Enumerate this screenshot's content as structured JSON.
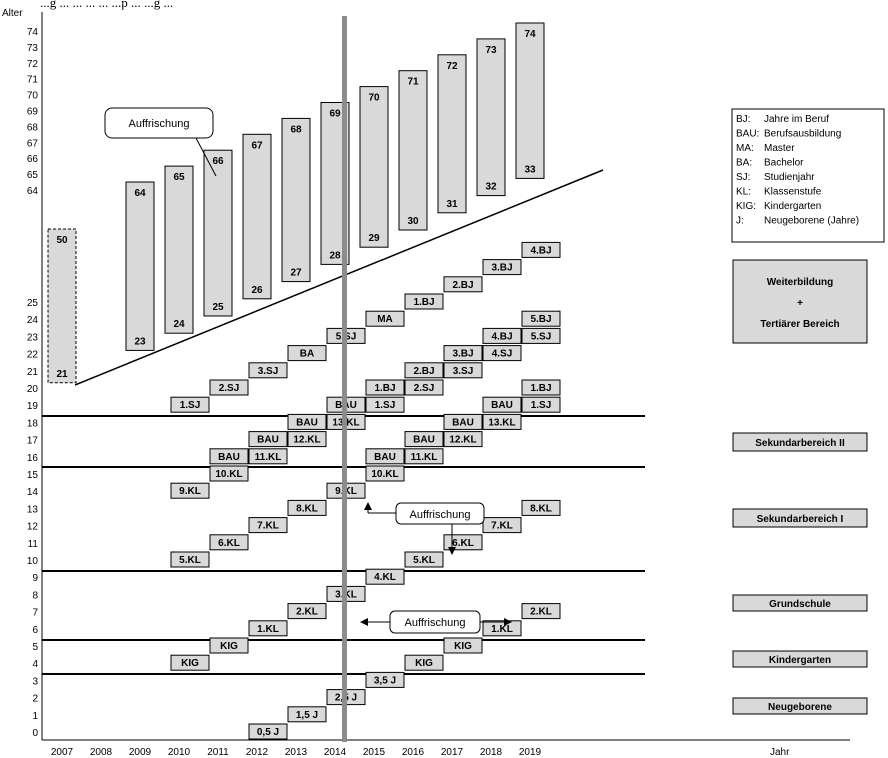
{
  "header_text": "...g ... ... ... ... ...p ... ...g ...",
  "y_axis": {
    "title": "Alter",
    "upper_ticks": [
      "74",
      "73",
      "72",
      "71",
      "70",
      "69",
      "68",
      "67",
      "66",
      "65",
      "64"
    ],
    "lower_ticks": [
      "25",
      "24",
      "23",
      "22",
      "21",
      "20",
      "19",
      "18",
      "17",
      "16",
      "15",
      "14",
      "13",
      "12",
      "11",
      "10",
      "9",
      "8",
      "7",
      "6",
      "5",
      "4",
      "3",
      "2",
      "1",
      "0"
    ]
  },
  "x_axis": {
    "title": "Jahr",
    "years": [
      "2007",
      "2008",
      "2009",
      "2010",
      "2011",
      "2012",
      "2013",
      "2014",
      "2015",
      "2016",
      "2017",
      "2018",
      "2019"
    ]
  },
  "tall_bars": [
    {
      "year": "2007",
      "top": "50",
      "bottom": "21",
      "dashed": true
    },
    {
      "year": "2009",
      "top": "64",
      "bottom": "23"
    },
    {
      "year": "2010",
      "top": "65",
      "bottom": "24"
    },
    {
      "year": "2011",
      "top": "66",
      "bottom": "25"
    },
    {
      "year": "2012",
      "top": "67",
      "bottom": "26"
    },
    {
      "year": "2013",
      "top": "68",
      "bottom": "27"
    },
    {
      "year": "2014",
      "top": "69",
      "bottom": "28"
    },
    {
      "year": "2015",
      "top": "70",
      "bottom": "29"
    },
    {
      "year": "2016",
      "top": "71",
      "bottom": "30"
    },
    {
      "year": "2017",
      "top": "72",
      "bottom": "31"
    },
    {
      "year": "2018",
      "top": "73",
      "bottom": "32"
    },
    {
      "year": "2019",
      "top": "74",
      "bottom": "33"
    }
  ],
  "boxes": [
    {
      "year": "2010",
      "age": 19,
      "label": "1.SJ"
    },
    {
      "year": "2011",
      "age": 20,
      "label": "2.SJ"
    },
    {
      "year": "2012",
      "age": 21,
      "label": "3.SJ"
    },
    {
      "year": "2013",
      "age": 22,
      "label": "BA"
    },
    {
      "year": "2014",
      "age": 23,
      "label": "5.SJ"
    },
    {
      "year": "2015",
      "age": 24,
      "label": "MA"
    },
    {
      "year": "2016",
      "age": 25,
      "label": "1.BJ"
    },
    {
      "year": "2017",
      "age": 26,
      "label": "2.BJ"
    },
    {
      "year": "2018",
      "age": 27,
      "label": "3.BJ"
    },
    {
      "year": "2019",
      "age": 28,
      "label": "4.BJ"
    },
    {
      "year": "2014",
      "age": 19,
      "label": "BAU"
    },
    {
      "year": "2015",
      "age": 19,
      "label": "1.SJ"
    },
    {
      "year": "2015",
      "age": 20,
      "label": "1.BJ"
    },
    {
      "year": "2016",
      "age": 20,
      "label": "2.SJ"
    },
    {
      "year": "2016",
      "age": 21,
      "label": "2.BJ"
    },
    {
      "year": "2017",
      "age": 21,
      "label": "3.SJ"
    },
    {
      "year": "2017",
      "age": 22,
      "label": "3.BJ"
    },
    {
      "year": "2018",
      "age": 22,
      "label": "4.SJ"
    },
    {
      "year": "2018",
      "age": 23,
      "label": "4.BJ"
    },
    {
      "year": "2019",
      "age": 23,
      "label": "5.SJ"
    },
    {
      "year": "2019",
      "age": 24,
      "label": "5.BJ"
    },
    {
      "year": "2018",
      "age": 19,
      "label": "BAU"
    },
    {
      "year": "2019",
      "age": 19,
      "label": "1.SJ"
    },
    {
      "year": "2019",
      "age": 20,
      "label": "1.BJ"
    },
    {
      "year": "2011",
      "age": 16,
      "label": "BAU"
    },
    {
      "year": "2012",
      "age": 16,
      "label": "11.KL"
    },
    {
      "year": "2012",
      "age": 17,
      "label": "BAU"
    },
    {
      "year": "2013",
      "age": 17,
      "label": "12.KL"
    },
    {
      "year": "2013",
      "age": 18,
      "label": "BAU"
    },
    {
      "year": "2014",
      "age": 18,
      "label": "13.KL"
    },
    {
      "year": "2015",
      "age": 16,
      "label": "BAU"
    },
    {
      "year": "2016",
      "age": 16,
      "label": "11.KL"
    },
    {
      "year": "2016",
      "age": 17,
      "label": "BAU"
    },
    {
      "year": "2017",
      "age": 17,
      "label": "12.KL"
    },
    {
      "year": "2017",
      "age": 18,
      "label": "BAU"
    },
    {
      "year": "2018",
      "age": 18,
      "label": "13.KL"
    },
    {
      "year": "2010",
      "age": 14,
      "label": "9.KL"
    },
    {
      "year": "2011",
      "age": 15,
      "label": "10.KL"
    },
    {
      "year": "2014",
      "age": 14,
      "label": "9.KL"
    },
    {
      "year": "2015",
      "age": 15,
      "label": "10.KL"
    },
    {
      "year": "2010",
      "age": 10,
      "label": "5.KL"
    },
    {
      "year": "2011",
      "age": 11,
      "label": "6.KL"
    },
    {
      "year": "2012",
      "age": 12,
      "label": "7.KL"
    },
    {
      "year": "2013",
      "age": 13,
      "label": "8.KL"
    },
    {
      "year": "2016",
      "age": 10,
      "label": "5.KL"
    },
    {
      "year": "2017",
      "age": 11,
      "label": "6.KL"
    },
    {
      "year": "2018",
      "age": 12,
      "label": "7.KL"
    },
    {
      "year": "2019",
      "age": 13,
      "label": "8.KL"
    },
    {
      "year": "2012",
      "age": 6,
      "label": "1.KL"
    },
    {
      "year": "2013",
      "age": 7,
      "label": "2.KL"
    },
    {
      "year": "2014",
      "age": 8,
      "label": "3.KL"
    },
    {
      "year": "2015",
      "age": 9,
      "label": "4.KL"
    },
    {
      "year": "2018",
      "age": 6,
      "label": "1.KL"
    },
    {
      "year": "2019",
      "age": 7,
      "label": "2.KL"
    },
    {
      "year": "2010",
      "age": 4,
      "label": "KIG"
    },
    {
      "year": "2011",
      "age": 5,
      "label": "KIG"
    },
    {
      "year": "2016",
      "age": 4,
      "label": "KIG"
    },
    {
      "year": "2017",
      "age": 5,
      "label": "KIG"
    },
    {
      "year": "2012",
      "age": 0,
      "label": "0,5 J"
    },
    {
      "year": "2013",
      "age": 1,
      "label": "1,5 J"
    },
    {
      "year": "2014",
      "age": 2,
      "label": "2,5 J"
    },
    {
      "year": "2015",
      "age": 3,
      "label": "3,5 J"
    }
  ],
  "callouts": {
    "top": "Auffrischung",
    "middle": "Auffrischung",
    "lower": "Auffrischung"
  },
  "legend": [
    {
      "abbr": "BJ:",
      "text": "Jahre im Beruf"
    },
    {
      "abbr": "BAU:",
      "text": "Berufsausbildung"
    },
    {
      "abbr": "MA:",
      "text": "Master"
    },
    {
      "abbr": "BA:",
      "text": "Bachelor"
    },
    {
      "abbr": "SJ:",
      "text": "Studienjahr"
    },
    {
      "abbr": "KL:",
      "text": "Klassenstufe"
    },
    {
      "abbr": "KIG:",
      "text": "Kindergarten"
    },
    {
      "abbr": "J:",
      "text": "Neugeborene (Jahre)"
    }
  ],
  "stages": {
    "weiterbildung": [
      "Weiterbildung",
      "+",
      "Tertiärer Bereich"
    ],
    "sek2": "Sekundarbereich II",
    "sek1": "Sekundarbereich I",
    "grundschule": "Grundschule",
    "kindergarten": "Kindergarten",
    "neugeborene": "Neugeborene"
  },
  "colors": {
    "box_fill": "#d9d9d9",
    "divider": "#000000",
    "current_year_line": "#8c8c8c"
  }
}
